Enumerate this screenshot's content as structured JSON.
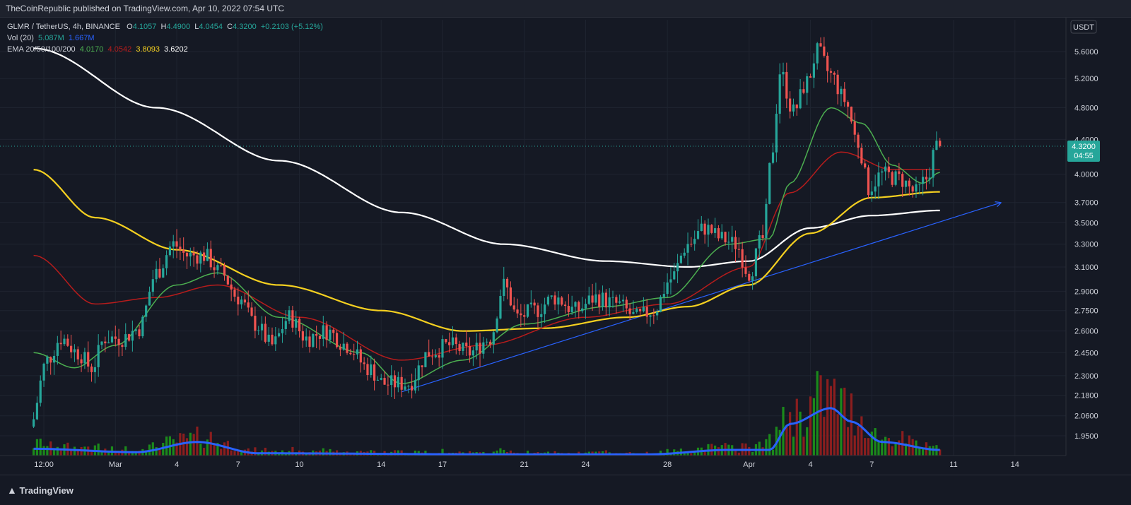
{
  "header": {
    "published": "TheCoinRepublic published on TradingView.com, Apr 10, 2022 07:54 UTC"
  },
  "legend": {
    "symbol": "GLMR / TetherUS, 4h, BINANCE",
    "o_label": "O",
    "o_value": "4.1057",
    "h_label": "H",
    "h_value": "4.4900",
    "l_label": "L",
    "l_value": "4.0454",
    "c_label": "C",
    "c_value": "4.3200",
    "change": "+0.2103 (+5.12%)",
    "vol_label": "Vol (20)",
    "vol_value1": "5.087M",
    "vol_value2": "1.667M",
    "ema_label": "EMA 20/50/100/200",
    "ema20": "4.0170",
    "ema50": "4.0542",
    "ema100": "3.8093",
    "ema200": "3.6202"
  },
  "price_axis": {
    "currency": "USDT",
    "current_price": "4.3200",
    "countdown": "04:55"
  },
  "footer": {
    "brand": "TradingView"
  },
  "colors": {
    "up": "#26a69a",
    "down": "#ef5350",
    "vol_up": "#1b8a1b",
    "vol_down": "#8b1e1e",
    "ema20": "#4caf50",
    "ema50": "#b71c1c",
    "ema100": "#f5d020",
    "ema200": "#ffffff",
    "trendline": "#2962ff",
    "vol_ma": "#2962ff",
    "background": "#151924"
  },
  "chart_data": {
    "type": "candlestick",
    "y_scale": "log",
    "y_ticks": [
      "5.6000",
      "5.2000",
      "4.8000",
      "4.4000",
      "4.0000",
      "3.7000",
      "3.5000",
      "3.3000",
      "3.1000",
      "2.9000",
      "2.7500",
      "2.6000",
      "2.4500",
      "2.3000",
      "2.1800",
      "2.0600",
      "1.9500"
    ],
    "x_ticks": [
      "12:00",
      "Mar",
      "4",
      "7",
      "10",
      "14",
      "17",
      "21",
      "24",
      "28",
      "Apr",
      "4",
      "7",
      "11",
      "14"
    ],
    "x_range_days": [
      "2022-02-25",
      "2022-04-16"
    ],
    "ylim": [
      1.86,
      6.05
    ],
    "price_anchors": [
      {
        "t": "2022-02-25 00:00",
        "p": 2.0
      },
      {
        "t": "2022-02-25 20:00",
        "p": 2.4
      },
      {
        "t": "2022-02-26 12:00",
        "p": 2.55
      },
      {
        "t": "2022-02-27 08:00",
        "p": 2.45
      },
      {
        "t": "2022-02-28 00:00",
        "p": 2.35
      },
      {
        "t": "2022-02-28 16:00",
        "p": 2.55
      },
      {
        "t": "2022-03-01 12:00",
        "p": 2.55
      },
      {
        "t": "2022-03-02 08:00",
        "p": 2.62
      },
      {
        "t": "2022-03-03 04:00",
        "p": 3.05
      },
      {
        "t": "2022-03-04 00:00",
        "p": 3.3
      },
      {
        "t": "2022-03-04 16:00",
        "p": 3.2
      },
      {
        "t": "2022-03-05 12:00",
        "p": 3.2
      },
      {
        "t": "2022-03-06 08:00",
        "p": 3.05
      },
      {
        "t": "2022-03-07 04:00",
        "p": 2.85
      },
      {
        "t": "2022-03-08 00:00",
        "p": 2.65
      },
      {
        "t": "2022-03-08 20:00",
        "p": 2.5
      },
      {
        "t": "2022-03-09 16:00",
        "p": 2.7
      },
      {
        "t": "2022-03-10 12:00",
        "p": 2.55
      },
      {
        "t": "2022-03-11 12:00",
        "p": 2.6
      },
      {
        "t": "2022-03-12 12:00",
        "p": 2.5
      },
      {
        "t": "2022-03-13 12:00",
        "p": 2.35
      },
      {
        "t": "2022-03-14 08:00",
        "p": 2.25
      },
      {
        "t": "2022-03-15 12:00",
        "p": 2.25
      },
      {
        "t": "2022-03-16 12:00",
        "p": 2.45
      },
      {
        "t": "2022-03-17 12:00",
        "p": 2.5
      },
      {
        "t": "2022-03-18 12:00",
        "p": 2.45
      },
      {
        "t": "2022-03-19 12:00",
        "p": 2.55
      },
      {
        "t": "2022-03-20 04:00",
        "p": 2.95
      },
      {
        "t": "2022-03-20 20:00",
        "p": 2.7
      },
      {
        "t": "2022-03-21 16:00",
        "p": 2.75
      },
      {
        "t": "2022-03-22 16:00",
        "p": 2.85
      },
      {
        "t": "2022-03-23 16:00",
        "p": 2.75
      },
      {
        "t": "2022-03-24 16:00",
        "p": 2.85
      },
      {
        "t": "2022-03-25 16:00",
        "p": 2.8
      },
      {
        "t": "2022-03-26 16:00",
        "p": 2.7
      },
      {
        "t": "2022-03-27 12:00",
        "p": 2.75
      },
      {
        "t": "2022-03-28 08:00",
        "p": 3.0
      },
      {
        "t": "2022-03-29 04:00",
        "p": 3.3
      },
      {
        "t": "2022-03-30 00:00",
        "p": 3.45
      },
      {
        "t": "2022-03-30 20:00",
        "p": 3.35
      },
      {
        "t": "2022-03-31 12:00",
        "p": 3.3
      },
      {
        "t": "2022-04-01 04:00",
        "p": 3.05
      },
      {
        "t": "2022-04-01 20:00",
        "p": 3.35
      },
      {
        "t": "2022-04-02 08:00",
        "p": 4.3
      },
      {
        "t": "2022-04-02 16:00",
        "p": 5.3
      },
      {
        "t": "2022-04-03 08:00",
        "p": 4.75
      },
      {
        "t": "2022-04-04 00:00",
        "p": 5.15
      },
      {
        "t": "2022-04-04 12:00",
        "p": 5.6
      },
      {
        "t": "2022-04-05 04:00",
        "p": 5.25
      },
      {
        "t": "2022-04-05 20:00",
        "p": 4.9
      },
      {
        "t": "2022-04-06 12:00",
        "p": 4.35
      },
      {
        "t": "2022-04-07 00:00",
        "p": 3.85
      },
      {
        "t": "2022-04-07 16:00",
        "p": 4.0
      },
      {
        "t": "2022-04-08 12:00",
        "p": 3.95
      },
      {
        "t": "2022-04-09 08:00",
        "p": 3.8
      },
      {
        "t": "2022-04-09 20:00",
        "p": 3.95
      },
      {
        "t": "2022-04-10 08:00",
        "p": 4.32
      }
    ],
    "ema200_anchors": [
      {
        "t": "2022-02-25 00:00",
        "p": 5.65
      },
      {
        "t": "2022-03-03 00:00",
        "p": 4.8
      },
      {
        "t": "2022-03-09 00:00",
        "p": 4.15
      },
      {
        "t": "2022-03-15 00:00",
        "p": 3.6
      },
      {
        "t": "2022-03-20 00:00",
        "p": 3.3
      },
      {
        "t": "2022-03-25 00:00",
        "p": 3.15
      },
      {
        "t": "2022-03-29 00:00",
        "p": 3.1
      },
      {
        "t": "2022-04-01 00:00",
        "p": 3.15
      },
      {
        "t": "2022-04-04 00:00",
        "p": 3.45
      },
      {
        "t": "2022-04-07 00:00",
        "p": 3.57
      },
      {
        "t": "2022-04-10 08:00",
        "p": 3.62
      }
    ],
    "ema100_anchors": [
      {
        "t": "2022-02-25 00:00",
        "p": 4.05
      },
      {
        "t": "2022-02-28 00:00",
        "p": 3.55
      },
      {
        "t": "2022-03-04 00:00",
        "p": 3.25
      },
      {
        "t": "2022-03-09 00:00",
        "p": 2.95
      },
      {
        "t": "2022-03-14 00:00",
        "p": 2.75
      },
      {
        "t": "2022-03-18 00:00",
        "p": 2.6
      },
      {
        "t": "2022-03-22 00:00",
        "p": 2.62
      },
      {
        "t": "2022-03-26 00:00",
        "p": 2.7
      },
      {
        "t": "2022-03-29 00:00",
        "p": 2.78
      },
      {
        "t": "2022-04-01 00:00",
        "p": 2.95
      },
      {
        "t": "2022-04-04 00:00",
        "p": 3.4
      },
      {
        "t": "2022-04-07 00:00",
        "p": 3.75
      },
      {
        "t": "2022-04-10 08:00",
        "p": 3.81
      }
    ],
    "ema50_anchors": [
      {
        "t": "2022-02-25 00:00",
        "p": 3.2
      },
      {
        "t": "2022-02-28 00:00",
        "p": 2.8
      },
      {
        "t": "2022-03-03 00:00",
        "p": 2.85
      },
      {
        "t": "2022-03-06 00:00",
        "p": 2.95
      },
      {
        "t": "2022-03-10 00:00",
        "p": 2.7
      },
      {
        "t": "2022-03-15 00:00",
        "p": 2.4
      },
      {
        "t": "2022-03-19 00:00",
        "p": 2.5
      },
      {
        "t": "2022-03-24 00:00",
        "p": 2.7
      },
      {
        "t": "2022-03-28 00:00",
        "p": 2.8
      },
      {
        "t": "2022-04-01 00:00",
        "p": 3.1
      },
      {
        "t": "2022-04-03 00:00",
        "p": 3.8
      },
      {
        "t": "2022-04-05 12:00",
        "p": 4.25
      },
      {
        "t": "2022-04-08 00:00",
        "p": 4.05
      },
      {
        "t": "2022-04-10 08:00",
        "p": 4.05
      }
    ],
    "ema20_anchors": [
      {
        "t": "2022-02-25 00:00",
        "p": 2.45
      },
      {
        "t": "2022-02-27 00:00",
        "p": 2.35
      },
      {
        "t": "2022-03-01 00:00",
        "p": 2.5
      },
      {
        "t": "2022-03-04 00:00",
        "p": 2.95
      },
      {
        "t": "2022-03-06 00:00",
        "p": 3.05
      },
      {
        "t": "2022-03-09 00:00",
        "p": 2.7
      },
      {
        "t": "2022-03-13 00:00",
        "p": 2.45
      },
      {
        "t": "2022-03-15 00:00",
        "p": 2.25
      },
      {
        "t": "2022-03-18 00:00",
        "p": 2.4
      },
      {
        "t": "2022-03-21 00:00",
        "p": 2.65
      },
      {
        "t": "2022-03-25 00:00",
        "p": 2.78
      },
      {
        "t": "2022-03-28 00:00",
        "p": 2.85
      },
      {
        "t": "2022-03-31 00:00",
        "p": 3.3
      },
      {
        "t": "2022-04-02 00:00",
        "p": 3.35
      },
      {
        "t": "2022-04-03 00:00",
        "p": 3.9
      },
      {
        "t": "2022-04-05 00:00",
        "p": 4.8
      },
      {
        "t": "2022-04-06 12:00",
        "p": 4.6
      },
      {
        "t": "2022-04-08 00:00",
        "p": 4.1
      },
      {
        "t": "2022-04-09 12:00",
        "p": 3.9
      },
      {
        "t": "2022-04-10 08:00",
        "p": 4.02
      }
    ],
    "trendline": {
      "start": {
        "t": "2022-03-15 00:00",
        "p": 2.2
      },
      "end": {
        "t": "2022-04-13 08:00",
        "p": 3.7
      }
    },
    "volume_ma_anchors": [
      {
        "t": "2022-02-25 00:00",
        "v": 0.06
      },
      {
        "t": "2022-03-02 00:00",
        "v": 0.03
      },
      {
        "t": "2022-03-05 00:00",
        "v": 0.12
      },
      {
        "t": "2022-03-08 00:00",
        "v": 0.02
      },
      {
        "t": "2022-03-20 00:00",
        "v": 0.01
      },
      {
        "t": "2022-03-27 00:00",
        "v": 0.01
      },
      {
        "t": "2022-03-31 00:00",
        "v": 0.05
      },
      {
        "t": "2022-04-02 00:00",
        "v": 0.05
      },
      {
        "t": "2022-04-03 00:00",
        "v": 0.28
      },
      {
        "t": "2022-04-05 00:00",
        "v": 0.42
      },
      {
        "t": "2022-04-06 00:00",
        "v": 0.3
      },
      {
        "t": "2022-04-07 12:00",
        "v": 0.12
      },
      {
        "t": "2022-04-10 08:00",
        "v": 0.05
      }
    ]
  }
}
